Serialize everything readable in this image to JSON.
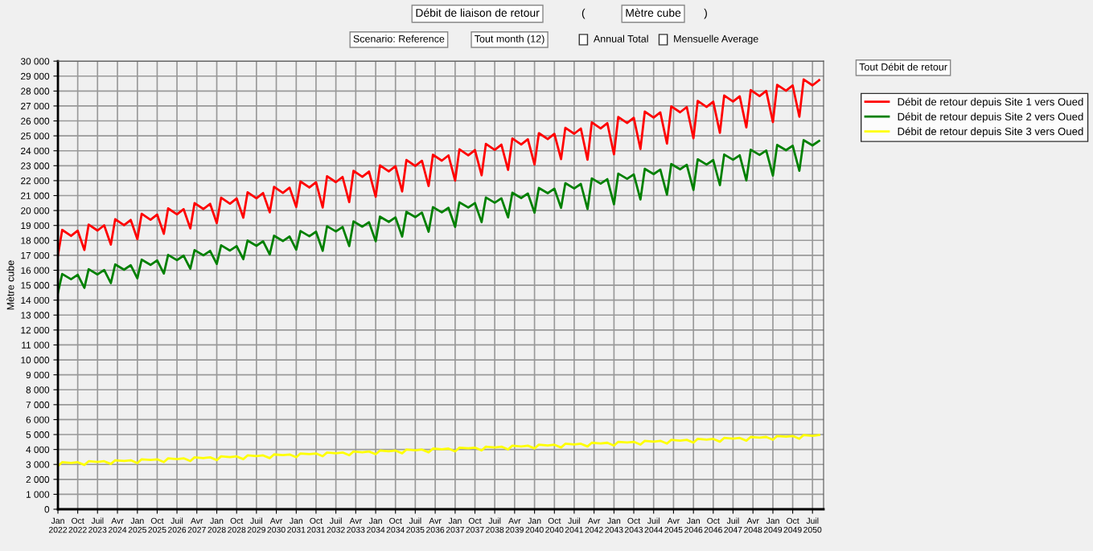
{
  "chart_data": {
    "type": "line",
    "ylabel": "Mètre cube",
    "annotations": [
      "Débit de liaison de retour",
      "(",
      "Mètre cube",
      ")",
      "Scenario: Reference",
      "Tout month (12)",
      "Annual Total",
      "Mensuelle Average",
      "Tout Débit de retour"
    ],
    "x": [
      "2022-01",
      "2022-03",
      "2022-07",
      "2022-10",
      "2023-01",
      "2023-03",
      "2023-07",
      "2023-10",
      "2024-01",
      "2024-03",
      "2024-07",
      "2024-10",
      "2025-01",
      "2025-03",
      "2025-07",
      "2025-10",
      "2026-01",
      "2026-03",
      "2026-07",
      "2026-10",
      "2027-01",
      "2027-03",
      "2027-07",
      "2027-10",
      "2028-01",
      "2028-03",
      "2028-07",
      "2028-10",
      "2029-01",
      "2029-03",
      "2029-07",
      "2029-10",
      "2030-01",
      "2030-03",
      "2030-07",
      "2030-10",
      "2031-01",
      "2031-03",
      "2031-07",
      "2031-10",
      "2032-01",
      "2032-03",
      "2032-07",
      "2032-10",
      "2033-01",
      "2033-03",
      "2033-07",
      "2033-10",
      "2034-01",
      "2034-03",
      "2034-07",
      "2034-10",
      "2035-01",
      "2035-03",
      "2035-07",
      "2035-10",
      "2036-01",
      "2036-03",
      "2036-07",
      "2036-10",
      "2037-01",
      "2037-03",
      "2037-07",
      "2037-10",
      "2038-01",
      "2038-03",
      "2038-07",
      "2038-10",
      "2039-01",
      "2039-03",
      "2039-07",
      "2039-10",
      "2040-01",
      "2040-03",
      "2040-07",
      "2040-10",
      "2041-01",
      "2041-03",
      "2041-07",
      "2041-10",
      "2042-01",
      "2042-03",
      "2042-07",
      "2042-10",
      "2043-01",
      "2043-03",
      "2043-07",
      "2043-10",
      "2044-01",
      "2044-03",
      "2044-07",
      "2044-10",
      "2045-01",
      "2045-03",
      "2045-07",
      "2045-10",
      "2046-01",
      "2046-03",
      "2046-07",
      "2046-10",
      "2047-01",
      "2047-03",
      "2047-07",
      "2047-10",
      "2048-01",
      "2048-03",
      "2048-07",
      "2048-10",
      "2049-01",
      "2049-03",
      "2049-07",
      "2049-10",
      "2050-01",
      "2050-03",
      "2050-07",
      "2050-10"
    ],
    "series": [
      {
        "name": "Débit de retour depuis Site 1 vers Oued",
        "color": "#ff0000",
        "values": [
          17000,
          18700,
          18300,
          18650,
          17360,
          19060,
          18660,
          19010,
          17720,
          19420,
          19020,
          19370,
          18080,
          19780,
          19380,
          19730,
          18440,
          20140,
          19740,
          20090,
          18800,
          20500,
          20100,
          20450,
          19160,
          20860,
          20460,
          20810,
          19520,
          21220,
          20820,
          21170,
          19880,
          21580,
          21180,
          21530,
          20240,
          21940,
          21540,
          21890,
          20200,
          22300,
          21900,
          22250,
          20560,
          22660,
          22260,
          22610,
          20920,
          23020,
          22620,
          22970,
          21280,
          23380,
          22980,
          23330,
          21640,
          23740,
          23340,
          23690,
          22000,
          24100,
          23700,
          24050,
          22360,
          24460,
          24060,
          24410,
          22720,
          24820,
          24420,
          24770,
          23080,
          25180,
          24780,
          25130,
          23440,
          25540,
          25140,
          25490,
          23400,
          25900,
          25500,
          25850,
          23760,
          26260,
          25860,
          26210,
          24120,
          26620,
          26220,
          26570,
          24480,
          26980,
          26580,
          26930,
          24840,
          27340,
          26940,
          27290,
          25200,
          27700,
          27300,
          27650,
          25560,
          28060,
          27660,
          28010,
          25920,
          28420,
          28020,
          28370,
          26280,
          28780,
          28380,
          28730
        ]
      },
      {
        "name": "Débit de retour depuis Site 2 vers Oued",
        "color": "#008000",
        "values": [
          14500,
          15750,
          15400,
          15700,
          14820,
          16070,
          15720,
          16020,
          15140,
          16390,
          16040,
          16340,
          15460,
          16710,
          16360,
          16660,
          15780,
          17030,
          16680,
          16980,
          16100,
          17350,
          17000,
          17300,
          16420,
          17670,
          17320,
          17620,
          16740,
          17990,
          17640,
          17940,
          17060,
          18310,
          17960,
          18260,
          17380,
          18630,
          18280,
          18580,
          17300,
          18950,
          18600,
          18900,
          17620,
          19270,
          18920,
          19220,
          17940,
          19590,
          19240,
          19540,
          18260,
          19910,
          19560,
          19860,
          18580,
          20230,
          19880,
          20180,
          18900,
          20550,
          20200,
          20500,
          19220,
          20870,
          20520,
          20820,
          19540,
          21190,
          20840,
          21140,
          19860,
          21510,
          21160,
          21460,
          20180,
          21830,
          21480,
          21780,
          20100,
          22150,
          21800,
          22100,
          20420,
          22470,
          22120,
          22420,
          20740,
          22790,
          22440,
          22740,
          21060,
          23110,
          22760,
          23060,
          21380,
          23430,
          23080,
          23380,
          21700,
          23750,
          23400,
          23700,
          22020,
          24070,
          23720,
          24020,
          22340,
          24390,
          24040,
          24340,
          22660,
          24710,
          24360,
          24660
        ]
      },
      {
        "name": "Débit de retour depuis Site 3 vers Oued",
        "color": "#ffff00",
        "values": [
          2900,
          3150,
          3100,
          3150,
          2965,
          3215,
          3165,
          3215,
          3030,
          3280,
          3230,
          3280,
          3095,
          3345,
          3295,
          3345,
          3160,
          3410,
          3360,
          3410,
          3225,
          3475,
          3425,
          3475,
          3290,
          3540,
          3490,
          3540,
          3355,
          3605,
          3555,
          3605,
          3420,
          3670,
          3620,
          3670,
          3485,
          3735,
          3685,
          3735,
          3550,
          3800,
          3750,
          3800,
          3615,
          3865,
          3815,
          3865,
          3680,
          3930,
          3880,
          3930,
          3745,
          3995,
          3945,
          3995,
          3810,
          4060,
          4010,
          4060,
          3875,
          4125,
          4075,
          4125,
          3940,
          4190,
          4140,
          4190,
          4005,
          4255,
          4205,
          4255,
          4070,
          4320,
          4270,
          4320,
          4135,
          4385,
          4335,
          4385,
          4200,
          4450,
          4400,
          4450,
          4265,
          4515,
          4465,
          4515,
          4330,
          4580,
          4530,
          4580,
          4395,
          4645,
          4595,
          4645,
          4460,
          4710,
          4660,
          4710,
          4525,
          4775,
          4725,
          4775,
          4590,
          4840,
          4790,
          4840,
          4655,
          4905,
          4855,
          4905,
          4720,
          4970,
          4920,
          4970
        ]
      }
    ],
    "xlim": [
      "2022-01",
      "2050-12"
    ],
    "xticks": [
      {
        "value": "2022-01",
        "label": "Jan\n2022"
      },
      {
        "value": "2022-10",
        "label": "Oct\n2022"
      },
      {
        "value": "2023-07",
        "label": "Juil\n2023"
      },
      {
        "value": "2024-04",
        "label": "Avr\n2024"
      },
      {
        "value": "2025-01",
        "label": "Jan\n2025"
      },
      {
        "value": "2025-10",
        "label": "Oct\n2025"
      },
      {
        "value": "2026-07",
        "label": "Juil\n2026"
      },
      {
        "value": "2027-04",
        "label": "Avr\n2027"
      },
      {
        "value": "2028-01",
        "label": "Jan\n2028"
      },
      {
        "value": "2028-10",
        "label": "Oct\n2028"
      },
      {
        "value": "2029-07",
        "label": "Juil\n2029"
      },
      {
        "value": "2030-04",
        "label": "Avr\n2030"
      },
      {
        "value": "2031-01",
        "label": "Jan\n2031"
      },
      {
        "value": "2031-10",
        "label": "Oct\n2031"
      },
      {
        "value": "2032-07",
        "label": "Juil\n2032"
      },
      {
        "value": "2033-04",
        "label": "Avr\n2033"
      },
      {
        "value": "2034-01",
        "label": "Jan\n2034"
      },
      {
        "value": "2034-10",
        "label": "Oct\n2034"
      },
      {
        "value": "2035-07",
        "label": "Juil\n2035"
      },
      {
        "value": "2036-04",
        "label": "Avr\n2036"
      },
      {
        "value": "2037-01",
        "label": "Jan\n2037"
      },
      {
        "value": "2037-10",
        "label": "Oct\n2037"
      },
      {
        "value": "2038-07",
        "label": "Juil\n2038"
      },
      {
        "value": "2039-04",
        "label": "Avr\n2039"
      },
      {
        "value": "2040-01",
        "label": "Jan\n2040"
      },
      {
        "value": "2040-10",
        "label": "Oct\n2040"
      },
      {
        "value": "2041-07",
        "label": "Juil\n2041"
      },
      {
        "value": "2042-04",
        "label": "Avr\n2042"
      },
      {
        "value": "2043-01",
        "label": "Jan\n2043"
      },
      {
        "value": "2043-10",
        "label": "Oct\n2043"
      },
      {
        "value": "2044-07",
        "label": "Juil\n2044"
      },
      {
        "value": "2045-04",
        "label": "Avr\n2045"
      },
      {
        "value": "2046-01",
        "label": "Jan\n2046"
      },
      {
        "value": "2046-10",
        "label": "Oct\n2046"
      },
      {
        "value": "2047-07",
        "label": "Juil\n2047"
      },
      {
        "value": "2048-04",
        "label": "Avr\n2048"
      },
      {
        "value": "2049-01",
        "label": "Jan\n2049"
      },
      {
        "value": "2049-10",
        "label": "Oct\n2049"
      },
      {
        "value": "2050-07",
        "label": "Juil\n2050"
      }
    ],
    "ylim": [
      0,
      30000
    ],
    "yticks": [
      0,
      {
        "value": 1000,
        "label": "1 000"
      },
      {
        "value": 2000,
        "label": "2 000"
      },
      {
        "value": 3000,
        "label": "3 000"
      },
      {
        "value": 4000,
        "label": "4 000"
      },
      {
        "value": 5000,
        "label": "5 000"
      },
      {
        "value": 6000,
        "label": "6 000"
      },
      {
        "value": 7000,
        "label": "7 000"
      },
      {
        "value": 8000,
        "label": "8 000"
      },
      {
        "value": 9000,
        "label": "9 000"
      },
      {
        "value": 10000,
        "label": "10 000"
      },
      {
        "value": 11000,
        "label": "11 000"
      },
      {
        "value": 12000,
        "label": "12 000"
      },
      {
        "value": 13000,
        "label": "13 000"
      },
      {
        "value": 14000,
        "label": "14 000"
      },
      {
        "value": 15000,
        "label": "15 000"
      },
      {
        "value": 16000,
        "label": "16 000"
      },
      {
        "value": 17000,
        "label": "17 000"
      },
      {
        "value": 18000,
        "label": "18 000"
      },
      {
        "value": 19000,
        "label": "19 000"
      },
      {
        "value": 20000,
        "label": "20 000"
      },
      {
        "value": 21000,
        "label": "21 000"
      },
      {
        "value": 22000,
        "label": "22 000"
      },
      {
        "value": 23000,
        "label": "23 000"
      },
      {
        "value": 24000,
        "label": "24 000"
      },
      {
        "value": 25000,
        "label": "25 000"
      },
      {
        "value": 26000,
        "label": "26 000"
      },
      {
        "value": 27000,
        "label": "27 000"
      },
      {
        "value": 28000,
        "label": "28 000"
      },
      {
        "value": 29000,
        "label": "29 000"
      },
      {
        "value": 30000,
        "label": "30 000"
      }
    ],
    "grid": true,
    "legend": "right",
    "line_style": "solid",
    "marker": "none"
  }
}
